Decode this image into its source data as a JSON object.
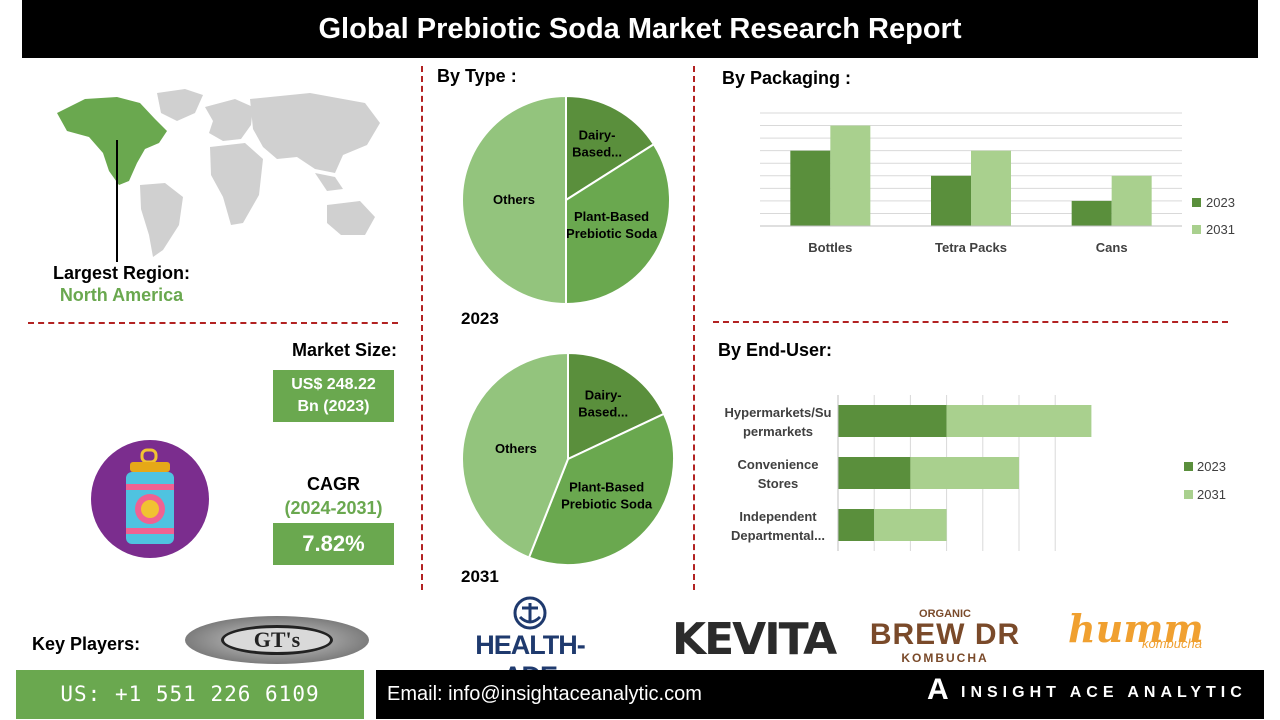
{
  "header": {
    "title": "Global Prebiotic Soda Market Research Report"
  },
  "region": {
    "label": "Largest Region:",
    "value": "North America"
  },
  "market_size": {
    "label": "Market Size:",
    "value_line1": "US$ 248.22",
    "value_line2": "Bn (2023)"
  },
  "cagr": {
    "label": "CAGR",
    "period": "(2024-2031)",
    "value": "7.82%"
  },
  "by_type": {
    "title": "By Type :",
    "year_a": "2023",
    "year_b": "2031"
  },
  "by_packaging": {
    "title": "By  Packaging :"
  },
  "by_end_user": {
    "title": "By End-User:"
  },
  "key_players": {
    "label": "Key Players:",
    "logos": [
      "GT's",
      "HEALTH-ADE",
      "KEVITA",
      "BREW DR",
      "humm"
    ],
    "brew_dr_top": "ORGANIC",
    "brew_dr_bottom": "KOMBUCHA",
    "humm_sub": "kombucha"
  },
  "footer": {
    "phone": "US: +1 551 226 6109",
    "email": "Email: info@insightaceanalytic.com",
    "company": "INSIGHT ACE ANALYTIC",
    "company_initial": "A"
  },
  "colors": {
    "dark_green": "#5a8f3c",
    "mid_green": "#6aa84f",
    "light_green": "#93c47d",
    "pale_green": "#a9d08e",
    "accent_red": "#b22222",
    "purple": "#7b2d8e"
  },
  "chart_data": [
    {
      "type": "pie",
      "title": "2023",
      "labels": [
        "Dairy-Based...",
        "Plant-Based Prebiotic Soda",
        "Others"
      ],
      "values": [
        16,
        34,
        50
      ],
      "colors": [
        "#5a8f3c",
        "#6aa84f",
        "#93c47d"
      ]
    },
    {
      "type": "pie",
      "title": "2031",
      "labels": [
        "Dairy-Based...",
        "Plant-Based Prebiotic Soda",
        "Others"
      ],
      "values": [
        18,
        38,
        44
      ],
      "colors": [
        "#5a8f3c",
        "#6aa84f",
        "#93c47d"
      ]
    },
    {
      "type": "bar",
      "title": "By  Packaging :",
      "categories": [
        "Bottles",
        "Tetra Packs",
        "Cans"
      ],
      "series": [
        {
          "name": "2023",
          "values": [
            30,
            20,
            10
          ],
          "color": "#5a8f3c"
        },
        {
          "name": "2031",
          "values": [
            40,
            30,
            20
          ],
          "color": "#a9d08e"
        }
      ],
      "ylim": [
        0,
        45
      ],
      "grid": true,
      "legend": "right"
    },
    {
      "type": "bar",
      "orientation": "horizontal",
      "title": "By End-User:",
      "categories": [
        "Hypermarkets/Supermarkets",
        "Convenience Stores",
        "Independent Departmental..."
      ],
      "category_display": [
        [
          "Hypermarkets/Su",
          "permarkets"
        ],
        [
          "Convenience",
          "Stores"
        ],
        [
          "Independent",
          "Departmental..."
        ]
      ],
      "series": [
        {
          "name": "2023",
          "values": [
            30,
            20,
            10
          ],
          "color": "#5a8f3c"
        },
        {
          "name": "2031",
          "values": [
            40,
            30,
            20
          ],
          "color": "#a9d08e"
        }
      ],
      "stacked": true,
      "xlim": [
        0,
        100
      ],
      "grid": true,
      "legend": "right"
    }
  ]
}
